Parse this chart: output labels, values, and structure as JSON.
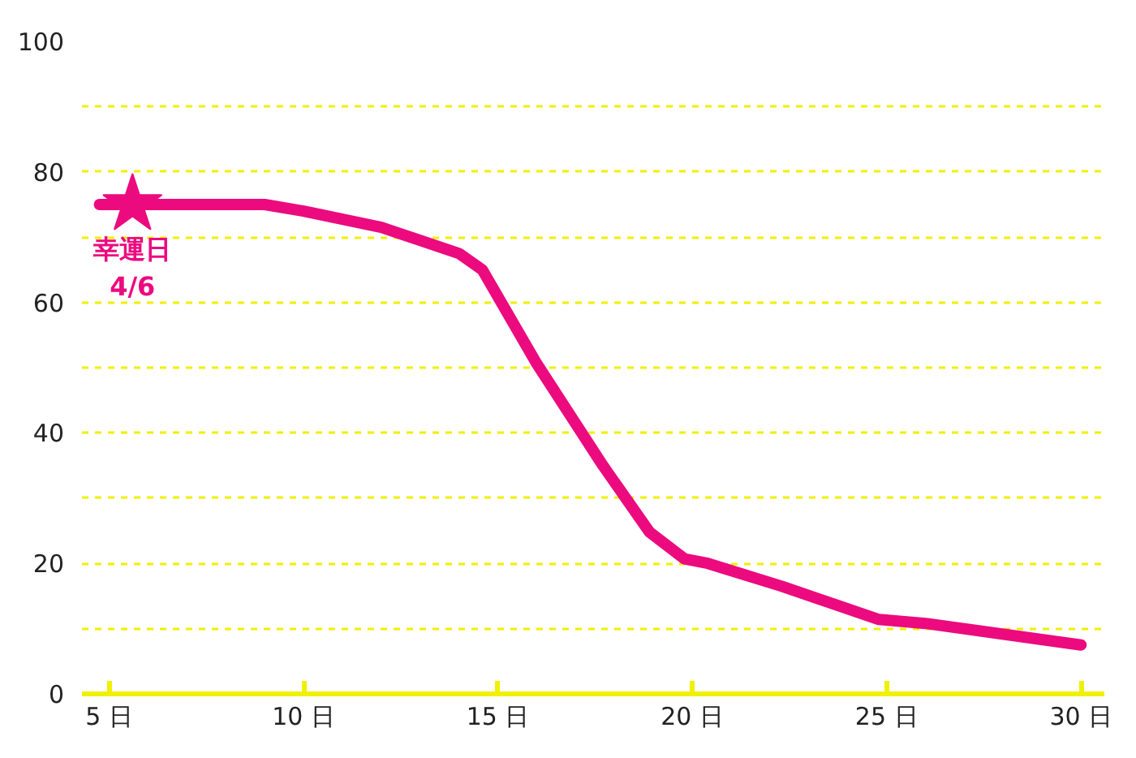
{
  "chart_data": {
    "type": "line",
    "xlim": [
      4.3,
      30.6
    ],
    "ylim": [
      0,
      100
    ],
    "xticks": [
      {
        "value": 5,
        "label": "5 日"
      },
      {
        "value": 10,
        "label": "10 日"
      },
      {
        "value": 15,
        "label": "15 日"
      },
      {
        "value": 20,
        "label": "20 日"
      },
      {
        "value": 25,
        "label": "25 日"
      },
      {
        "value": 30,
        "label": "30 日"
      }
    ],
    "yticks": [
      0,
      {
        "value": 10,
        "label": null
      },
      20,
      {
        "value": 30,
        "label": null
      },
      40,
      {
        "value": 50,
        "label": null
      },
      60,
      {
        "value": 70,
        "label": null
      },
      80,
      {
        "value": 90,
        "label": null
      },
      100
    ],
    "grid": "y",
    "line_style": "solid",
    "series": [
      {
        "color": "#ec0a7f",
        "marker": "none",
        "x": [
          4.75,
          9,
          10,
          12,
          14,
          14.6,
          16,
          17.7,
          18.9,
          19.8,
          20.4,
          22.3,
          24.8,
          26,
          30
        ],
        "values": [
          75,
          75,
          74,
          71.5,
          67.5,
          65,
          50.6,
          35,
          24.8,
          20.7,
          20,
          16.5,
          11.4,
          10.8,
          7.5
        ]
      },
      {
        "type": "scatter",
        "color": "#ec0a7f",
        "marker": "star",
        "x": [
          5.6
        ],
        "values": [
          75
        ]
      }
    ],
    "annotations": [
      {
        "text": "幸運日\n4/6",
        "x": 5.6,
        "y": 75
      }
    ]
  }
}
